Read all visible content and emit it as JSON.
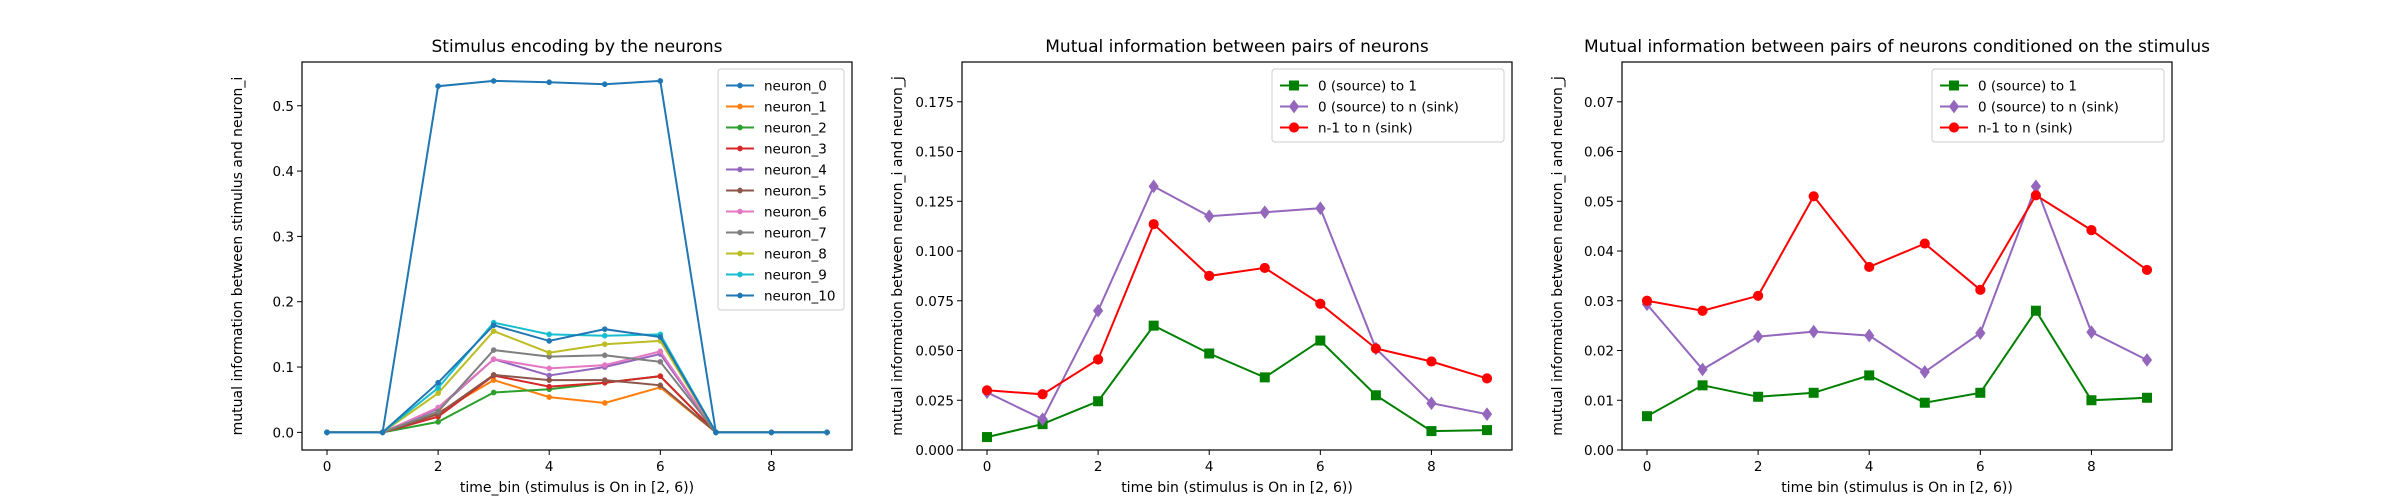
{
  "chart_data": [
    {
      "type": "line",
      "title": "Stimulus encoding by the neurons",
      "xlabel": "time_bin (stimulus is On in [2, 6))",
      "ylabel": "mutual information between stimulus and neuron_i",
      "xlim": [
        -0.45,
        9.45
      ],
      "ylim": [
        -0.027,
        0.567
      ],
      "xticks": [
        0,
        2,
        4,
        6,
        8
      ],
      "yticks": [
        0.0,
        0.1,
        0.2,
        0.3,
        0.4,
        0.5
      ],
      "ytick_labels": [
        "0.0",
        "0.1",
        "0.2",
        "0.3",
        "0.4",
        "0.5"
      ],
      "legend_loc": "upper-right",
      "grid": false,
      "x": [
        0,
        1,
        2,
        3,
        4,
        5,
        6,
        7,
        8,
        9
      ],
      "series": [
        {
          "name": "neuron_0",
          "color": "#1f77b4",
          "marker": "point",
          "values": [
            0,
            0,
            0.53,
            0.538,
            0.536,
            0.533,
            0.538,
            0,
            0,
            0
          ]
        },
        {
          "name": "neuron_1",
          "color": "#ff7f0e",
          "marker": "point",
          "values": [
            0,
            0,
            0.03,
            0.08,
            0.054,
            0.045,
            0.069,
            0,
            0,
            0
          ]
        },
        {
          "name": "neuron_2",
          "color": "#2ca02c",
          "marker": "point",
          "values": [
            0,
            0,
            0.016,
            0.061,
            0.066,
            0.076,
            0.086,
            0,
            0,
            0
          ]
        },
        {
          "name": "neuron_3",
          "color": "#d62728",
          "marker": "point",
          "values": [
            0,
            0,
            0.024,
            0.087,
            0.07,
            0.076,
            0.086,
            0,
            0,
            0
          ]
        },
        {
          "name": "neuron_4",
          "color": "#9467bd",
          "marker": "point",
          "values": [
            0,
            0,
            0.036,
            0.112,
            0.087,
            0.1,
            0.12,
            0,
            0,
            0
          ]
        },
        {
          "name": "neuron_5",
          "color": "#8c564b",
          "marker": "point",
          "values": [
            0,
            0,
            0.028,
            0.088,
            0.08,
            0.08,
            0.072,
            0,
            0,
            0
          ]
        },
        {
          "name": "neuron_6",
          "color": "#e377c2",
          "marker": "point",
          "values": [
            0,
            0,
            0.038,
            0.112,
            0.098,
            0.103,
            0.124,
            0,
            0,
            0
          ]
        },
        {
          "name": "neuron_7",
          "color": "#7f7f7f",
          "marker": "point",
          "values": [
            0,
            0,
            0.032,
            0.126,
            0.116,
            0.118,
            0.108,
            0,
            0,
            0
          ]
        },
        {
          "name": "neuron_8",
          "color": "#bcbd22",
          "marker": "point",
          "values": [
            0,
            0,
            0.06,
            0.155,
            0.122,
            0.135,
            0.14,
            0,
            0,
            0
          ]
        },
        {
          "name": "neuron_9",
          "color": "#17becf",
          "marker": "point",
          "values": [
            0,
            0,
            0.068,
            0.168,
            0.15,
            0.148,
            0.15,
            0,
            0,
            0
          ]
        },
        {
          "name": "neuron_10",
          "color": "#1f77b4",
          "marker": "point",
          "values": [
            0,
            0,
            0.076,
            0.164,
            0.14,
            0.158,
            0.146,
            0,
            0,
            0
          ]
        }
      ]
    },
    {
      "type": "line",
      "title": "Mutual information between pairs of neurons",
      "xlabel": "time bin (stimulus is On in [2, 6))",
      "ylabel": "mutual information between neuron_i and neuron_j",
      "xlim": [
        -0.45,
        9.45
      ],
      "ylim": [
        0.0,
        0.195
      ],
      "xticks": [
        0,
        2,
        4,
        6,
        8
      ],
      "yticks": [
        0.0,
        0.025,
        0.05,
        0.075,
        0.1,
        0.125,
        0.15,
        0.175
      ],
      "ytick_labels": [
        "0.000",
        "0.025",
        "0.050",
        "0.075",
        "0.100",
        "0.125",
        "0.150",
        "0.175"
      ],
      "legend_loc": "upper-right",
      "grid": false,
      "x": [
        0,
        1,
        2,
        3,
        4,
        5,
        6,
        7,
        8,
        9
      ],
      "series": [
        {
          "name": "0 (source) to 1",
          "color": "#008000",
          "marker": "square",
          "values": [
            0.0065,
            0.013,
            0.0245,
            0.0625,
            0.0485,
            0.0365,
            0.055,
            0.0275,
            0.0095,
            0.01
          ]
        },
        {
          "name": "0 (source) to n (sink)",
          "color": "#9467bd",
          "marker": "diamond",
          "values": [
            0.029,
            0.0155,
            0.07,
            0.1325,
            0.1175,
            0.1195,
            0.1215,
            0.051,
            0.0235,
            0.018
          ]
        },
        {
          "name": "n-1 to n (sink)",
          "color": "#ff0000",
          "marker": "circle",
          "values": [
            0.03,
            0.028,
            0.0455,
            0.1135,
            0.0875,
            0.0915,
            0.0735,
            0.051,
            0.0445,
            0.036
          ]
        }
      ]
    },
    {
      "type": "line",
      "title": "Mutual information between pairs of neurons conditioned on the stimulus",
      "xlabel": "time bin (stimulus is On in [2, 6))",
      "ylabel": "mutual information between neuron_i and neuron_j",
      "xlim": [
        -0.45,
        9.45
      ],
      "ylim": [
        0.0,
        0.078
      ],
      "xticks": [
        0,
        2,
        4,
        6,
        8
      ],
      "yticks": [
        0.0,
        0.01,
        0.02,
        0.03,
        0.04,
        0.05,
        0.06,
        0.07
      ],
      "ytick_labels": [
        "0.00",
        "0.01",
        "0.02",
        "0.03",
        "0.04",
        "0.05",
        "0.06",
        "0.07"
      ],
      "legend_loc": "upper-right",
      "grid": false,
      "x": [
        0,
        1,
        2,
        3,
        4,
        5,
        6,
        7,
        8,
        9
      ],
      "series": [
        {
          "name": "0 (source) to 1",
          "color": "#008000",
          "marker": "square",
          "values": [
            0.0068,
            0.013,
            0.0107,
            0.0115,
            0.015,
            0.0095,
            0.0115,
            0.028,
            0.01,
            0.0105
          ]
        },
        {
          "name": "0 (source) to n (sink)",
          "color": "#9467bd",
          "marker": "diamond",
          "values": [
            0.0293,
            0.0162,
            0.0228,
            0.0238,
            0.023,
            0.0157,
            0.0235,
            0.053,
            0.0237,
            0.0181
          ]
        },
        {
          "name": "n-1 to n (sink)",
          "color": "#ff0000",
          "marker": "circle",
          "values": [
            0.03,
            0.028,
            0.031,
            0.051,
            0.0368,
            0.0415,
            0.0322,
            0.0512,
            0.0442,
            0.0362
          ]
        }
      ]
    }
  ]
}
